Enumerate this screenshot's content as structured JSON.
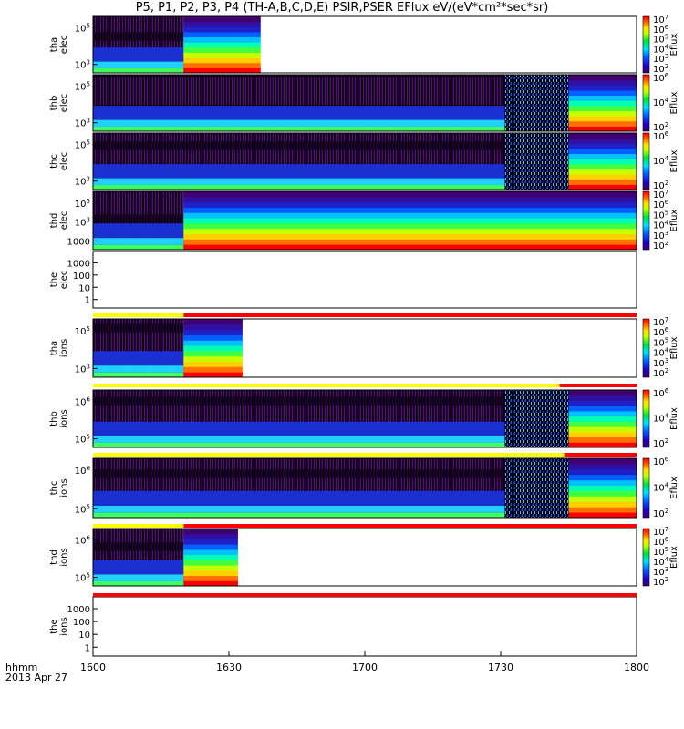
{
  "title": "P5, P1, P2, P3, P4 (TH-A,B,C,D,E) PSIR,PSER EFlux eV/(eV*cm²*sec*sr)",
  "xaxis": {
    "label_line1": "hhmm",
    "label_line2": "2013 Apr 27"
  },
  "chart_data": {
    "type": "heatmap",
    "title": "P5, P1, P2, P3, P4 (TH-A,B,C,D,E) PSIR,PSER EFlux eV/(eV*cm²*sec*sr)",
    "x": {
      "label": "hhmm",
      "date": "2013 Apr 27",
      "range": [
        "16:00",
        "18:00"
      ],
      "ticks": [
        "1600",
        "1630",
        "1700",
        "1730",
        "1800"
      ]
    },
    "colorbar_label": "Eflux",
    "panels": [
      {
        "probe": "tha",
        "species": "elec",
        "ylabel": [
          "tha",
          "elec"
        ],
        "yscale": "log",
        "yticks": [
          "10^5",
          "10^3"
        ],
        "colorbar_ticks": [
          "10^7",
          "10^6",
          "10^5",
          "10^4",
          "10^3",
          "10^2"
        ],
        "data_end": "16:37",
        "mode_switch": "16:20"
      },
      {
        "probe": "thb",
        "species": "elec",
        "ylabel": [
          "thb",
          "elec"
        ],
        "yscale": "log",
        "yticks": [
          "10^5",
          "10^3"
        ],
        "colorbar_ticks": [
          "10^6",
          "10^4",
          "10^2"
        ],
        "data_end": "18:00",
        "mode_switch": "17:45"
      },
      {
        "probe": "thc",
        "species": "elec",
        "ylabel": [
          "thc",
          "elec"
        ],
        "yscale": "log",
        "yticks": [
          "10^5",
          "10^3"
        ],
        "colorbar_ticks": [
          "10^6",
          "10^4",
          "10^2"
        ],
        "data_end": "18:00",
        "mode_switch": "17:45"
      },
      {
        "probe": "thd",
        "species": "elec",
        "ylabel": [
          "thd",
          "elec"
        ],
        "yscale": "log",
        "yticks": [
          "10^5",
          "10^3",
          "1000"
        ],
        "colorbar_ticks": [
          "10^7",
          "10^6",
          "10^5",
          "10^4",
          "10^3",
          "10^2"
        ],
        "data_end": "18:00",
        "mode_switch": "16:20"
      },
      {
        "probe": "the",
        "species": "elec",
        "ylabel": [
          "the",
          "elec"
        ],
        "yscale": "log",
        "yticks": [
          "1000",
          "100",
          "10",
          "1"
        ],
        "colorbar_ticks": [],
        "data_end": null
      },
      {
        "probe": "tha",
        "species": "ions",
        "ylabel": [
          "tha",
          "ions"
        ],
        "yscale": "log",
        "yticks": [
          "10^5",
          "10^3"
        ],
        "colorbar_ticks": [
          "10^7",
          "10^6",
          "10^5",
          "10^4",
          "10^3",
          "10^2"
        ],
        "data_end": "16:33",
        "mode_switch": "16:20"
      },
      {
        "probe": "thb",
        "species": "ions",
        "ylabel": [
          "thb",
          "ions"
        ],
        "yscale": "log",
        "yticks": [
          "10^6",
          "10^5"
        ],
        "colorbar_ticks": [
          "10^6",
          "10^4",
          "10^2"
        ],
        "data_end": "18:00",
        "mode_switch": "17:45"
      },
      {
        "probe": "thc",
        "species": "ions",
        "ylabel": [
          "thc",
          "ions"
        ],
        "yscale": "log",
        "yticks": [
          "10^6",
          "10^5"
        ],
        "colorbar_ticks": [
          "10^6",
          "10^4",
          "10^2"
        ],
        "data_end": "18:00",
        "mode_switch": "17:45"
      },
      {
        "probe": "thd",
        "species": "ions",
        "ylabel": [
          "thd",
          "ions"
        ],
        "yscale": "log",
        "yticks": [
          "10^6",
          "10^5"
        ],
        "colorbar_ticks": [
          "10^7",
          "10^6",
          "10^5",
          "10^4",
          "10^3",
          "10^2"
        ],
        "data_end": "16:32",
        "mode_switch": "16:20"
      },
      {
        "probe": "the",
        "species": "ions",
        "ylabel": [
          "the",
          "ions"
        ],
        "yscale": "log",
        "yticks": [
          "1000",
          "100",
          "10",
          "1"
        ],
        "colorbar_ticks": [],
        "data_end": null
      }
    ],
    "mode_bars": [
      {
        "after_panel": "the elec",
        "segments": [
          {
            "from": "16:00",
            "to": "16:20",
            "color": "#ffff00"
          },
          {
            "from": "16:20",
            "to": "18:00",
            "color": "#ff0000"
          }
        ]
      },
      {
        "after_panel": "tha ions",
        "segments": [
          {
            "from": "16:00",
            "to": "17:43",
            "color": "#ffff00"
          },
          {
            "from": "17:43",
            "to": "18:00",
            "color": "#ff0000"
          }
        ]
      },
      {
        "after_panel": "thb ions",
        "segments": [
          {
            "from": "16:00",
            "to": "17:44",
            "color": "#ffff00"
          },
          {
            "from": "17:44",
            "to": "18:00",
            "color": "#ff0000"
          }
        ]
      },
      {
        "after_panel": "thc ions",
        "segments": [
          {
            "from": "16:00",
            "to": "16:20",
            "color": "#ffff00"
          },
          {
            "from": "16:20",
            "to": "18:00",
            "color": "#ff0000"
          }
        ]
      },
      {
        "after_panel": "thd ions",
        "segments": [
          {
            "from": "16:00",
            "to": "18:00",
            "color": "#ff0000"
          }
        ]
      }
    ]
  }
}
